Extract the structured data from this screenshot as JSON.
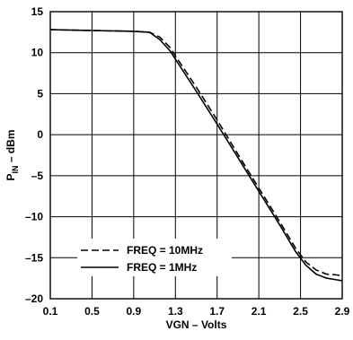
{
  "chart_data": {
    "type": "line",
    "xlabel": "VGN – Volts",
    "ylabel_main": "P",
    "ylabel_sub": "IN",
    "ylabel_rest": " – dBm",
    "xlim": [
      0.1,
      2.9
    ],
    "ylim": [
      -20,
      15
    ],
    "x_ticks": [
      0.1,
      0.5,
      0.9,
      1.3,
      1.7,
      2.1,
      2.5,
      2.9
    ],
    "x_tick_labels": [
      "0.1",
      "0.5",
      "0.9",
      "1.3",
      "1.7",
      "2.1",
      "2.5",
      "2.9"
    ],
    "y_ticks": [
      15,
      10,
      5,
      0,
      -5,
      -10,
      -15,
      -20
    ],
    "y_tick_labels": [
      "15",
      "10",
      "5",
      "0",
      "–5",
      "–10",
      "–15",
      "–20"
    ],
    "grid": true,
    "legend_position": "bottom-left",
    "series": [
      {
        "name": "FREQ = 10MHz",
        "style": "dashed",
        "x": [
          0.1,
          0.5,
          0.9,
          1.05,
          1.15,
          1.25,
          1.3,
          1.5,
          1.7,
          1.9,
          2.1,
          2.3,
          2.45,
          2.55,
          2.65,
          2.75,
          2.85,
          2.9
        ],
        "y": [
          12.8,
          12.7,
          12.6,
          12.5,
          11.9,
          10.6,
          9.6,
          5.8,
          1.8,
          -2.4,
          -6.5,
          -10.6,
          -13.8,
          -15.5,
          -16.5,
          -17.0,
          -17.1,
          -17.2
        ]
      },
      {
        "name": "FREQ = 1MHz",
        "style": "solid",
        "x": [
          0.1,
          0.5,
          0.9,
          1.05,
          1.15,
          1.25,
          1.3,
          1.5,
          1.7,
          1.9,
          2.1,
          2.3,
          2.45,
          2.55,
          2.65,
          2.75,
          2.85,
          2.9
        ],
        "y": [
          12.8,
          12.7,
          12.6,
          12.5,
          11.6,
          10.2,
          9.2,
          5.3,
          1.3,
          -2.8,
          -6.9,
          -11.0,
          -14.2,
          -15.9,
          -17.0,
          -17.5,
          -17.7,
          -17.8
        ]
      }
    ]
  }
}
